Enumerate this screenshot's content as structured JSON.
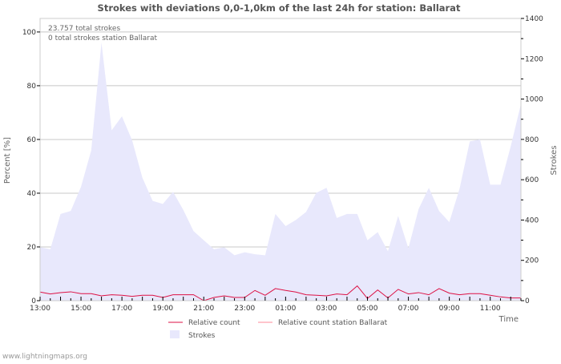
{
  "chart_data": {
    "type": "area",
    "title": "Strokes with deviations 0,0-1,0km of the last 24h for station: Ballarat",
    "annotations": [
      "23.757 total strokes",
      "0 total strokes station Ballarat"
    ],
    "xlabel": "Time",
    "ylabel_left": "Percent   [%]",
    "ylabel_right": "Strokes",
    "ylim_left": [
      0,
      100
    ],
    "ylim_right": [
      0,
      1400
    ],
    "yticks_left": [
      "0",
      "20",
      "40",
      "60",
      "80",
      "100"
    ],
    "yticks_right": [
      "0",
      "200",
      "400",
      "600",
      "800",
      "1000",
      "1200",
      "1400"
    ],
    "xticks": [
      "13:00",
      "15:00",
      "17:00",
      "19:00",
      "21:00",
      "23:00",
      "01:00",
      "03:00",
      "05:00",
      "07:00",
      "09:00",
      "11:00"
    ],
    "interval_minutes": 30,
    "series": [
      {
        "name": "Relative count",
        "color": "#dd1144",
        "axis": "left",
        "values": [
          3.2,
          2.5,
          3.0,
          3.3,
          2.6,
          2.6,
          1.8,
          2.2,
          2.0,
          1.6,
          2.0,
          2.0,
          1.2,
          2.2,
          2.2,
          2.2,
          0,
          1.2,
          1.8,
          1.2,
          1.2,
          3.8,
          2.0,
          4.5,
          3.8,
          3.2,
          2.2,
          2.0,
          1.8,
          2.5,
          2.2,
          5.5,
          0.8,
          4.0,
          1.0,
          4.2,
          2.5,
          3.0,
          2.2,
          4.5,
          2.8,
          2.2,
          2.6,
          2.6,
          2.0,
          1.4,
          1.0,
          1.0
        ]
      },
      {
        "name": "Relative count station Ballarat",
        "color": "#ff8899",
        "axis": "left",
        "values": [
          0,
          0,
          0,
          0,
          0,
          0,
          0,
          0,
          0,
          0,
          0,
          0,
          0,
          0,
          0,
          0,
          0,
          0,
          0,
          0,
          0,
          0,
          0,
          0,
          0,
          0,
          0,
          0,
          0,
          0,
          0,
          0,
          0,
          0,
          0,
          0,
          0,
          0,
          0,
          0,
          0,
          0,
          0,
          0,
          0,
          0,
          0,
          0
        ]
      },
      {
        "name": "Strokes",
        "color": "#e8e8fc",
        "axis": "right",
        "values": [
          265,
          255,
          430,
          445,
          565,
          745,
          1280,
          845,
          915,
          795,
          610,
          495,
          480,
          540,
          450,
          345,
          300,
          255,
          265,
          225,
          240,
          230,
          225,
          430,
          370,
          400,
          440,
          535,
          560,
          410,
          430,
          430,
          300,
          340,
          245,
          420,
          260,
          455,
          560,
          445,
          390,
          555,
          790,
          800,
          575,
          575,
          765,
          975
        ]
      }
    ]
  },
  "footer": "www.lightningmaps.org"
}
